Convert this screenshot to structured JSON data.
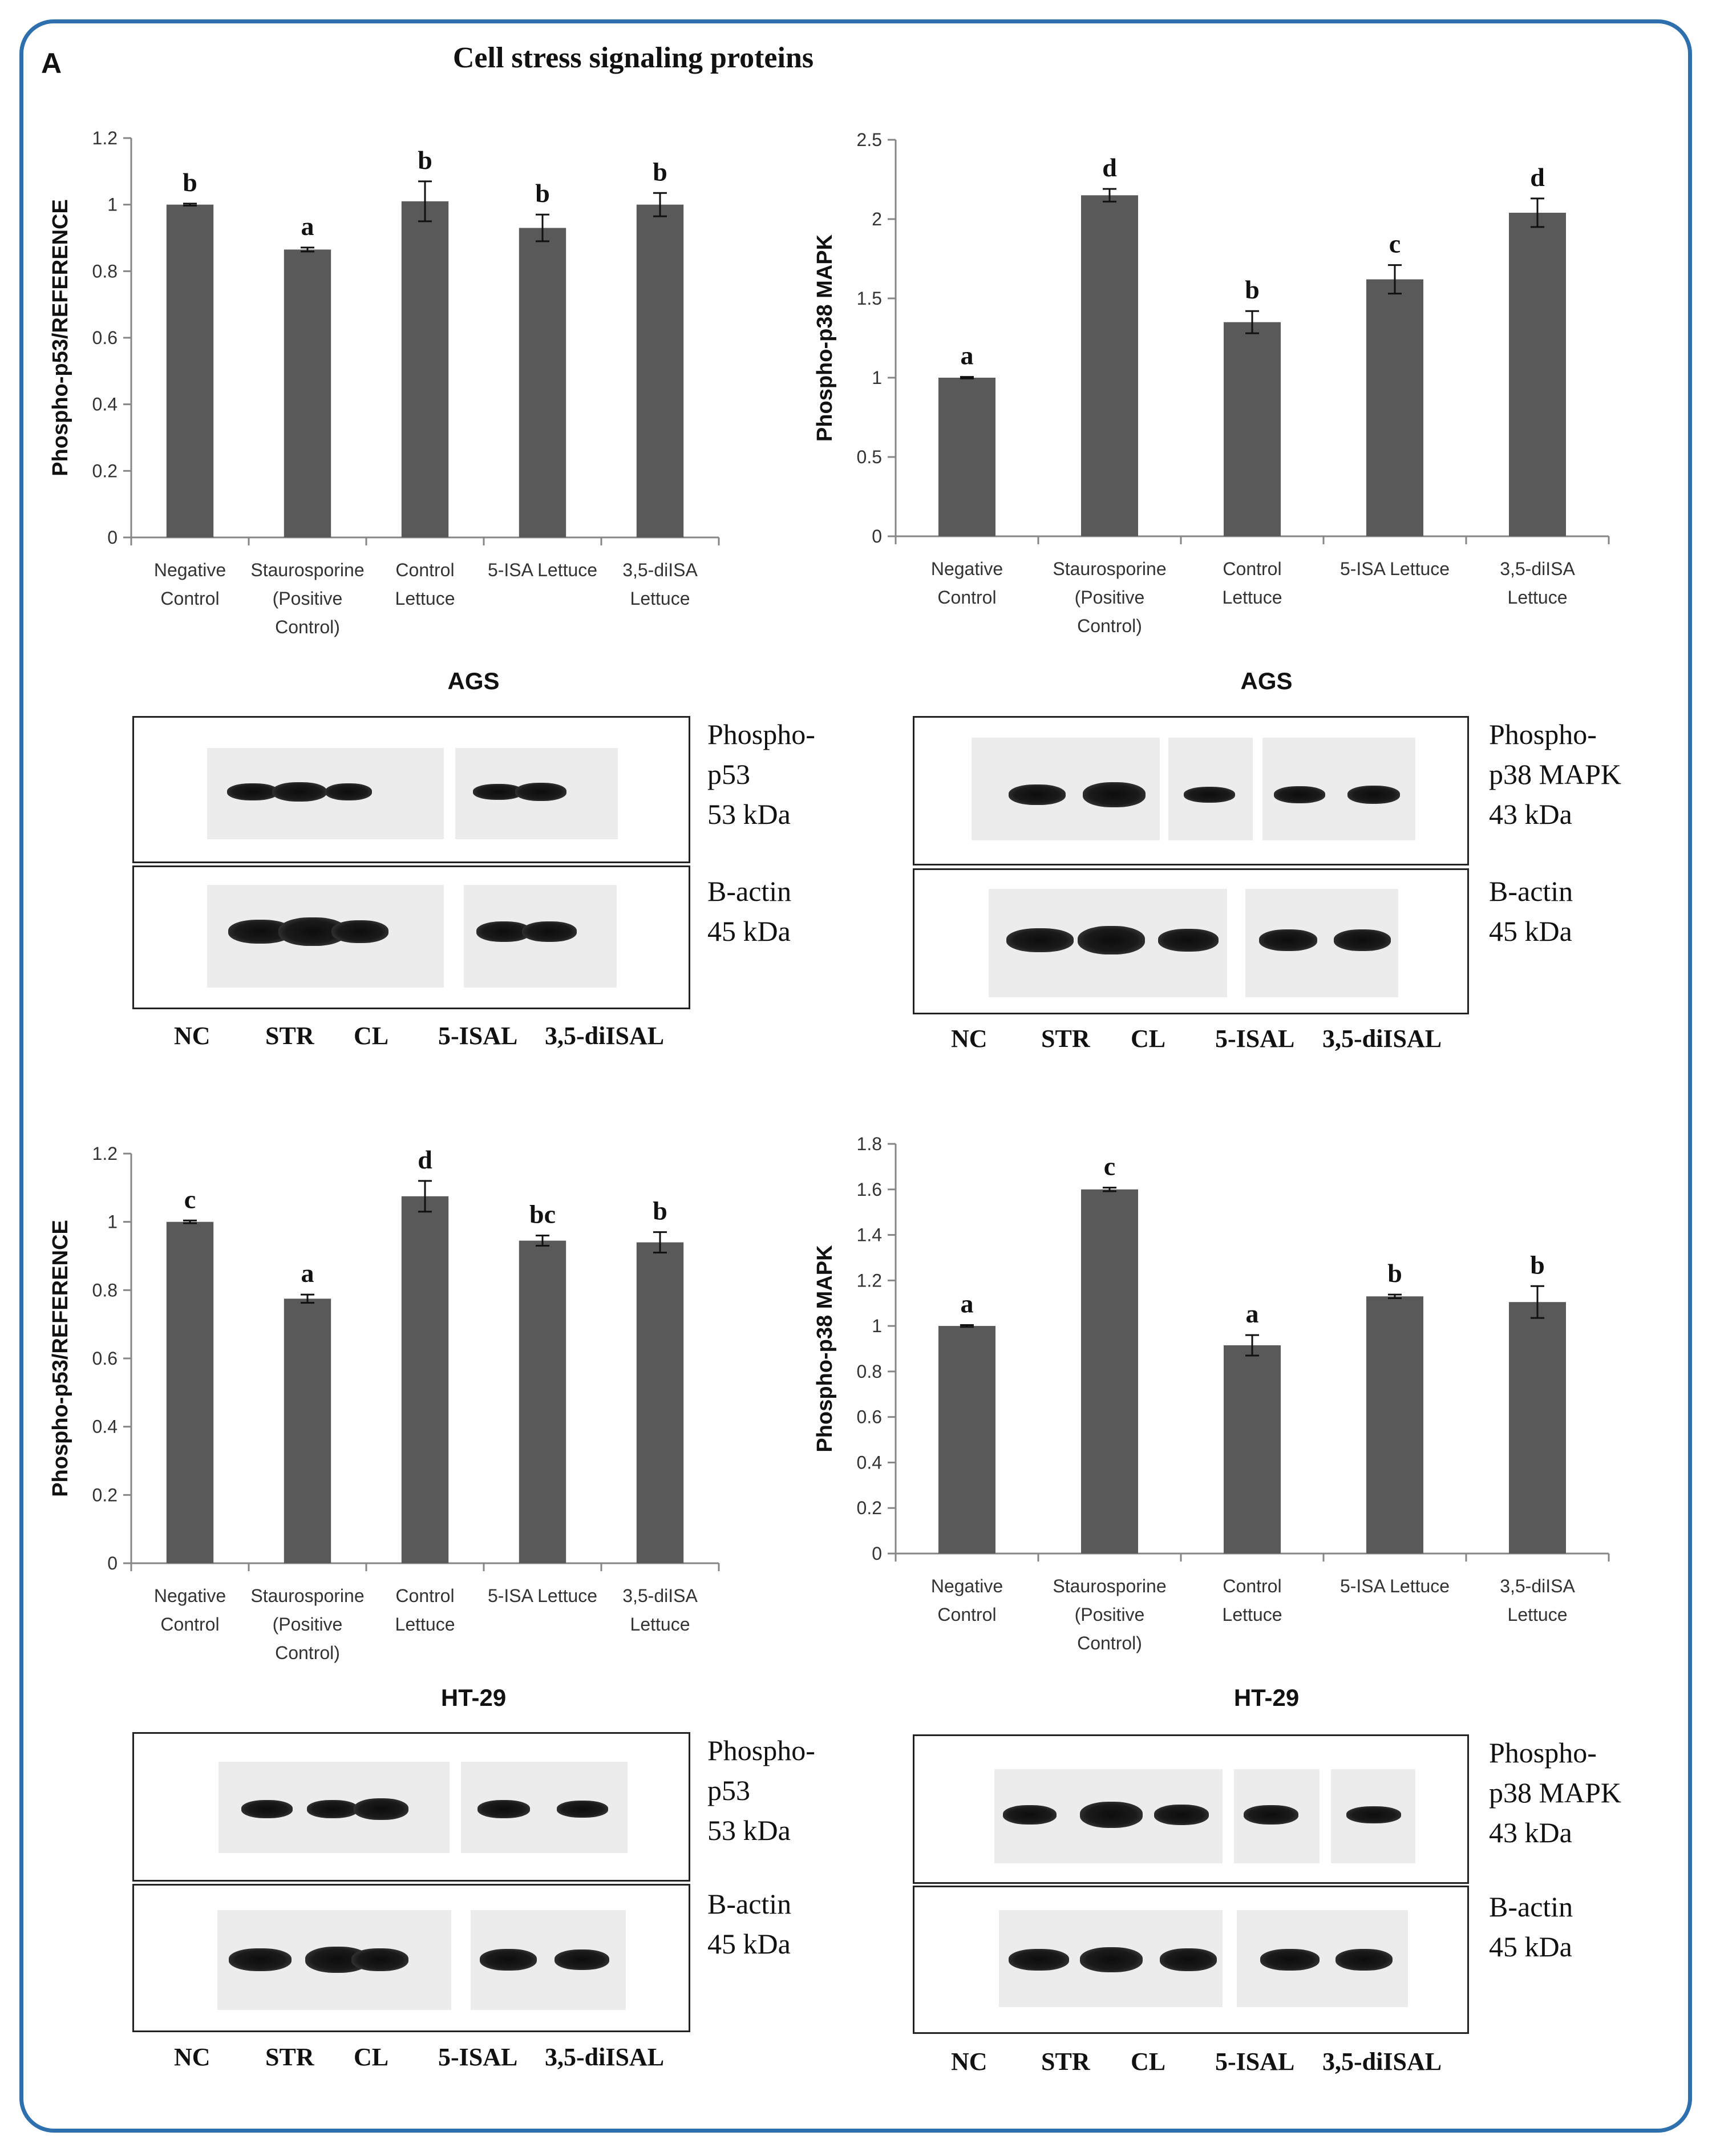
{
  "figure": {
    "panel_letter": "A",
    "title": "Cell stress signaling proteins"
  },
  "categories": [
    "Negative\nControl",
    "Staurosporine\n(Positive\nControl)",
    "Control\nLettuce",
    "5-ISA Lettuce",
    "3,5-diISA\nLettuce"
  ],
  "lane_labels": [
    "NC",
    "STR",
    "CL",
    "5-ISAL",
    "3,5-diISAL"
  ],
  "colors": {
    "bar": "#595959",
    "frame": "#2e6fad",
    "axis": "#868686"
  },
  "chart_data": [
    {
      "type": "bar",
      "panel": "AGS-p53",
      "ylabel": "Phospho-p53/REFERENCE",
      "ylim": [
        0,
        1.2
      ],
      "yticks": [
        "0",
        "0.2",
        "0.4",
        "0.6",
        "0.8",
        "1",
        "1.2"
      ],
      "values": [
        1.0,
        0.865,
        1.01,
        0.93,
        1.0
      ],
      "errors": [
        0.003,
        0.006,
        0.06,
        0.04,
        0.035
      ],
      "letters": [
        "b",
        "a",
        "b",
        "b",
        "b"
      ]
    },
    {
      "type": "bar",
      "panel": "AGS-p38",
      "ylabel": "Phospho-p38 MAPK",
      "ylim": [
        0,
        2.5
      ],
      "yticks": [
        "0",
        "0.5",
        "1",
        "1.5",
        "2",
        "2.5"
      ],
      "values": [
        1.0,
        2.15,
        1.35,
        1.62,
        2.04
      ],
      "errors": [
        0.005,
        0.04,
        0.07,
        0.09,
        0.09
      ],
      "letters": [
        "a",
        "d",
        "b",
        "c",
        "d"
      ]
    },
    {
      "type": "bar",
      "panel": "HT29-p53",
      "ylabel": "Phospho-p53/REFERENCE",
      "ylim": [
        0,
        1.2
      ],
      "yticks": [
        "0",
        "0.2",
        "0.4",
        "0.6",
        "0.8",
        "1",
        "1.2"
      ],
      "values": [
        1.0,
        0.775,
        1.075,
        0.945,
        0.94
      ],
      "errors": [
        0.004,
        0.012,
        0.045,
        0.015,
        0.03
      ],
      "letters": [
        "c",
        "a",
        "d",
        "bc",
        "b"
      ]
    },
    {
      "type": "bar",
      "panel": "HT29-p38",
      "ylabel": "Phospho-p38 MAPK",
      "ylim": [
        0,
        1.8
      ],
      "yticks": [
        "0",
        "0.2",
        "0.4",
        "0.6",
        "0.8",
        "1",
        "1.2",
        "1.4",
        "1.6",
        "1.8"
      ],
      "values": [
        1.0,
        1.6,
        0.915,
        1.13,
        1.105
      ],
      "errors": [
        0.004,
        0.008,
        0.045,
        0.008,
        0.07
      ],
      "letters": [
        "a",
        "c",
        "a",
        "b",
        "b"
      ]
    }
  ],
  "blots": {
    "ags_label": "AGS",
    "ht29_label": "HT-29",
    "p53_target": [
      "Phospho-",
      "p53",
      "53 kDa"
    ],
    "p38_target": [
      "Phospho-",
      "p38 MAPK",
      "43 kDa"
    ],
    "actin": [
      "B-actin",
      "45 kDa"
    ]
  }
}
